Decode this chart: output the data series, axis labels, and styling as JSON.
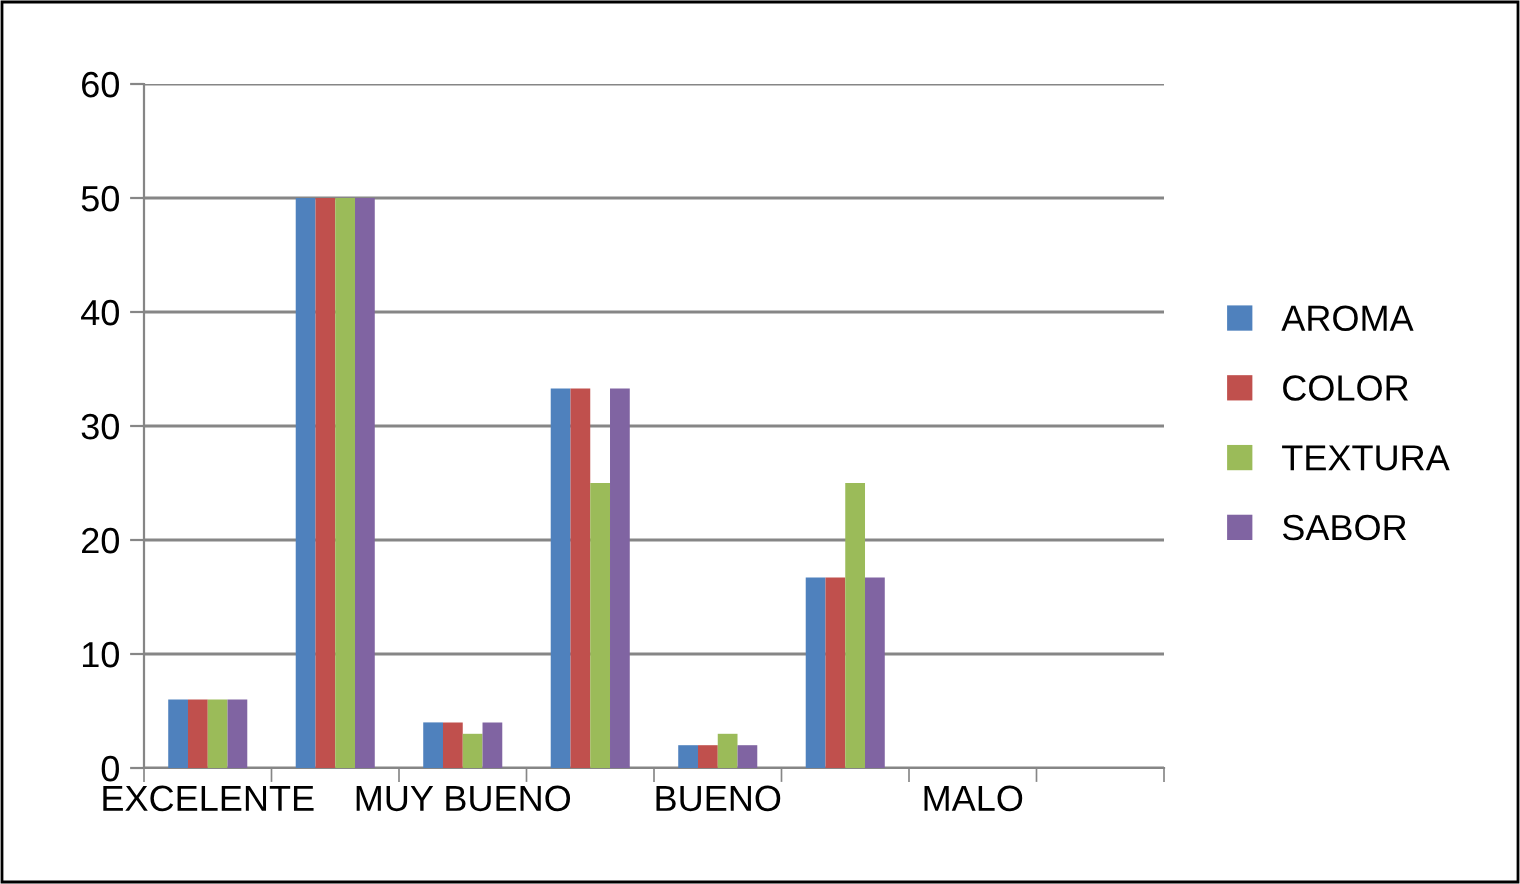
{
  "chart_data": {
    "type": "bar",
    "categories": [
      "EXCELENTE",
      null,
      "MUY BUENO",
      null,
      "BUENO",
      null,
      "MALO",
      null
    ],
    "series": [
      {
        "name": "AROMA",
        "color": "#4f81bd",
        "values": [
          6,
          50,
          4,
          33.3,
          2,
          16.7,
          0,
          0
        ]
      },
      {
        "name": "COLOR",
        "color": "#c0504d",
        "values": [
          6,
          50,
          4,
          33.3,
          2,
          16.7,
          0,
          0
        ]
      },
      {
        "name": "TEXTURA",
        "color": "#9bbb59",
        "values": [
          6,
          50,
          3,
          25,
          3,
          25,
          0,
          0
        ]
      },
      {
        "name": "SABOR",
        "color": "#8064a2",
        "values": [
          6,
          50,
          4,
          33.3,
          2,
          16.7,
          0,
          0
        ]
      }
    ],
    "ylim": [
      0,
      60
    ],
    "yticks": [
      0,
      10,
      20,
      30,
      40,
      50,
      60
    ],
    "grid": "y",
    "legend": "right"
  }
}
